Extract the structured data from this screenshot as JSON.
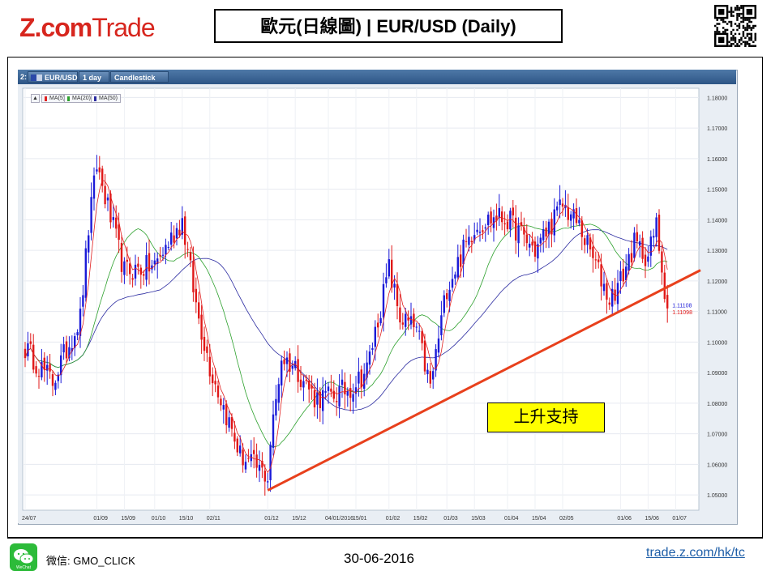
{
  "header": {
    "logo_z": "Z.com",
    "logo_trade": "Trade",
    "title": "歐元(日線圖) | EUR/USD  (Daily)"
  },
  "toolbar": {
    "index_label": "2:",
    "instrument": "EUR/USD",
    "period": "1 day",
    "chart_style": "Candlestick"
  },
  "legend": {
    "toggle": "▲",
    "items": [
      {
        "label": "MA(5)",
        "color": "#e02020"
      },
      {
        "label": "MA(20)",
        "color": "#2ca02c"
      },
      {
        "label": "MA(50)",
        "color": "#2a2aa0"
      }
    ]
  },
  "annotation": {
    "text": "上升支持"
  },
  "footer": {
    "wechat_id": "微信: GMO_CLICK",
    "date": "30-06-2016",
    "site": "trade.z.com/hk/tc"
  },
  "colors": {
    "bull": "#1a1ad8",
    "bear": "#e01818",
    "trendline": "#e8401c",
    "ma5": "#e02020",
    "ma20": "#2ca02c",
    "ma50": "#2a2aa0"
  },
  "chart_data": {
    "type": "candlestick",
    "instrument": "EUR/USD",
    "timeframe": "1 day",
    "ylim": [
      1.045,
      1.183
    ],
    "y_ticks": [
      "1.18000",
      "1.17000",
      "1.16000",
      "1.15000",
      "1.14000",
      "1.13000",
      "1.12000",
      "1.11000",
      "1.10000",
      "1.09000",
      "1.08000",
      "1.07000",
      "1.06000",
      "1.05000"
    ],
    "x_ticks": [
      "24/07",
      "01/09",
      "15/09",
      "01/10",
      "15/10",
      "02/11",
      "01/12",
      "15/12",
      "04/01/2016",
      "15/01",
      "01/02",
      "15/02",
      "01/03",
      "15/03",
      "01/04",
      "15/04",
      "02/05",
      "01/06",
      "15/06",
      "01/07"
    ],
    "x_tick_index": [
      0,
      26,
      36,
      47,
      57,
      67,
      88,
      98,
      110,
      120,
      132,
      142,
      153,
      163,
      175,
      185,
      195,
      216,
      226,
      236
    ],
    "anchor_index": [
      0,
      10,
      20,
      23,
      26,
      36,
      47,
      57,
      62,
      67,
      78,
      88,
      89,
      93,
      98,
      105,
      110,
      118,
      124,
      132,
      136,
      142,
      147,
      153,
      158,
      163,
      171,
      175,
      185,
      195,
      201,
      208,
      212,
      216,
      221,
      226,
      229,
      233
    ],
    "anchor_close": [
      1.098,
      1.087,
      1.108,
      1.137,
      1.158,
      1.123,
      1.125,
      1.14,
      1.112,
      1.092,
      1.063,
      1.056,
      1.067,
      1.095,
      1.092,
      1.082,
      1.082,
      1.085,
      1.091,
      1.124,
      1.108,
      1.104,
      1.085,
      1.118,
      1.128,
      1.138,
      1.141,
      1.14,
      1.13,
      1.145,
      1.138,
      1.123,
      1.114,
      1.12,
      1.132,
      1.128,
      1.138,
      1.111
    ],
    "last_price_1": "1.11108",
    "last_price_2": "1.11098",
    "trendline": [
      [
        1.0515,
        88
      ],
      [
        1.1235,
        245
      ]
    ],
    "series": [
      {
        "name": "MA(5)"
      },
      {
        "name": "MA(20)"
      },
      {
        "name": "MA(50)"
      }
    ]
  }
}
